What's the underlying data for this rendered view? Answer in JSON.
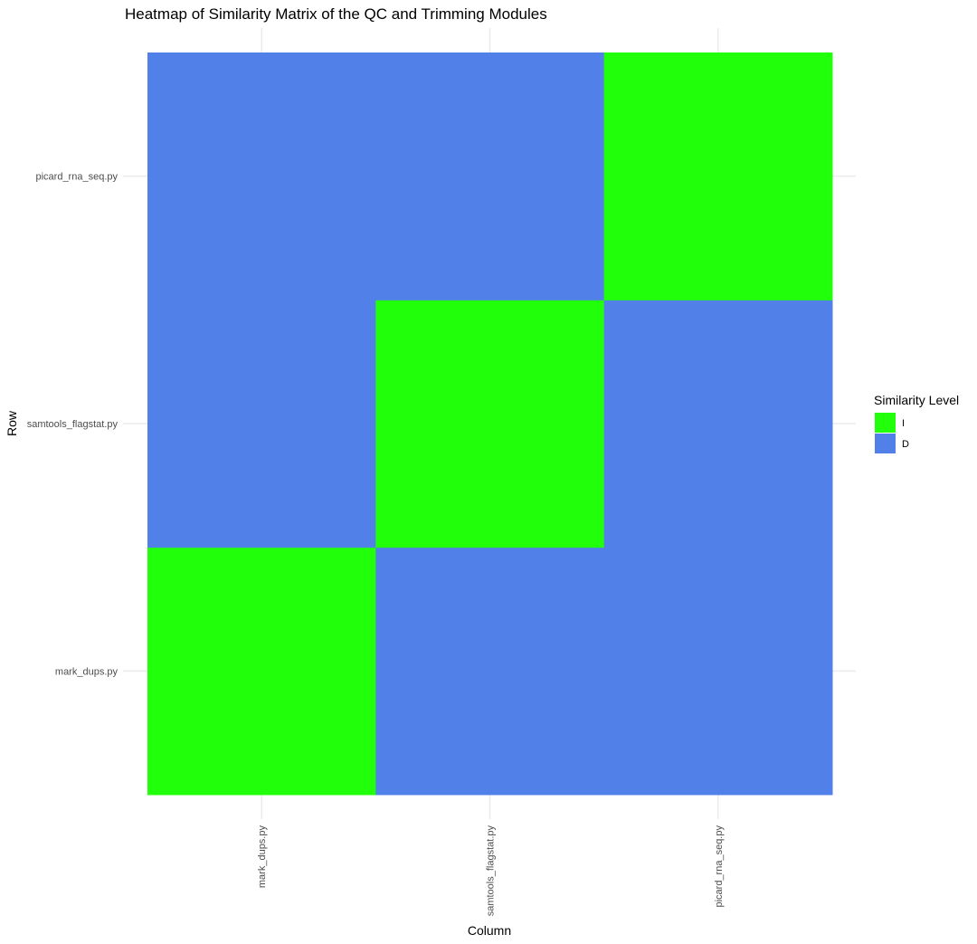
{
  "chart_data": {
    "type": "heatmap",
    "title": "Heatmap of Similarity Matrix of the QC and Trimming Modules",
    "xlabel": "Column",
    "ylabel": "Row",
    "x_categories": [
      "mark_dups.py",
      "samtools_flagstat.py",
      "picard_rna_seq.py"
    ],
    "y_categories": [
      "mark_dups.py",
      "samtools_flagstat.py",
      "picard_rna_seq.py"
    ],
    "cells": [
      {
        "row": "mark_dups.py",
        "col": "mark_dups.py",
        "level": "I"
      },
      {
        "row": "mark_dups.py",
        "col": "samtools_flagstat.py",
        "level": "D"
      },
      {
        "row": "mark_dups.py",
        "col": "picard_rna_seq.py",
        "level": "D"
      },
      {
        "row": "samtools_flagstat.py",
        "col": "mark_dups.py",
        "level": "D"
      },
      {
        "row": "samtools_flagstat.py",
        "col": "samtools_flagstat.py",
        "level": "I"
      },
      {
        "row": "samtools_flagstat.py",
        "col": "picard_rna_seq.py",
        "level": "D"
      },
      {
        "row": "picard_rna_seq.py",
        "col": "mark_dups.py",
        "level": "D"
      },
      {
        "row": "picard_rna_seq.py",
        "col": "samtools_flagstat.py",
        "level": "D"
      },
      {
        "row": "picard_rna_seq.py",
        "col": "picard_rna_seq.py",
        "level": "I"
      }
    ],
    "legend": {
      "title": "Similarity Level",
      "placement": "right",
      "items": [
        {
          "label": "I",
          "color": "#22ff0a"
        },
        {
          "label": "D",
          "color": "#5280e9"
        }
      ]
    },
    "grid": true
  }
}
